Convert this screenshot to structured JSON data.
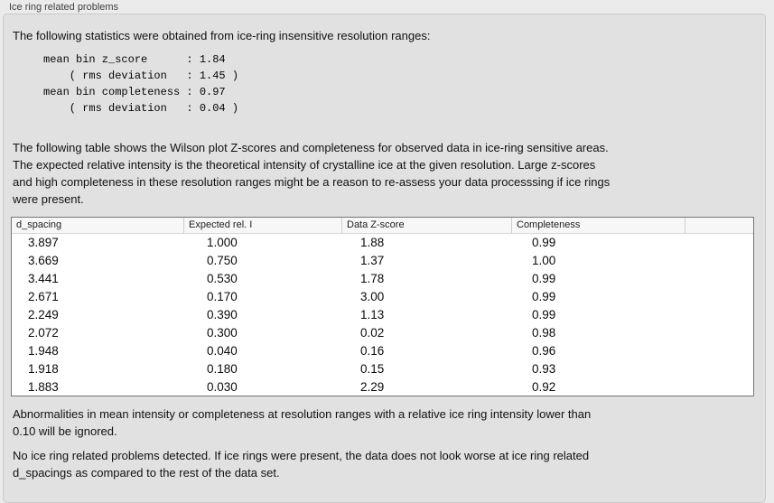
{
  "panel": {
    "title": "Ice ring related problems"
  },
  "intro": "The following statistics were obtained from ice-ring insensitive resolution ranges:",
  "stats_block": "mean bin z_score      : 1.84\n    ( rms deviation   : 1.45 )\nmean bin completeness : 0.97\n    ( rms deviation   : 0.04 )",
  "stats": {
    "mean_bin_z_score": "1.84",
    "z_score_rms_deviation": "1.45",
    "mean_bin_completeness": "0.97",
    "completeness_rms_deviation": "0.04"
  },
  "table_description": "The following table shows the Wilson plot Z-scores and completeness for observed data in ice-ring sensitive areas.\nThe expected relative intensity is the theoretical intensity of crystalline ice at the given resolution. Large z-scores\nand high completeness in these resolution ranges might be a reason to re-assess your data processsing if ice rings\nwere present.",
  "table": {
    "columns": [
      "d_spacing",
      "Expected rel. I",
      "Data Z-score",
      "Completeness"
    ],
    "rows": [
      [
        "3.897",
        "1.000",
        "1.88",
        "0.99"
      ],
      [
        "3.669",
        "0.750",
        "1.37",
        "1.00"
      ],
      [
        "3.441",
        "0.530",
        "1.78",
        "0.99"
      ],
      [
        "2.671",
        "0.170",
        "3.00",
        "0.99"
      ],
      [
        "2.249",
        "0.390",
        "1.13",
        "0.99"
      ],
      [
        "2.072",
        "0.300",
        "0.02",
        "0.98"
      ],
      [
        "1.948",
        "0.040",
        "0.16",
        "0.96"
      ],
      [
        "1.918",
        "0.180",
        "0.15",
        "0.93"
      ],
      [
        "1.883",
        "0.030",
        "2.29",
        "0.92"
      ]
    ]
  },
  "ignore_note": "Abnormalities in mean intensity or completeness at resolution ranges with a relative ice ring intensity lower than\n0.10 will be ignored.",
  "conclusion": "No ice ring related problems detected. If ice rings were present, the data does not look worse at ice ring related\nd_spacings as compared to the rest of the data set.",
  "colors": {
    "page_bg": "#ebebeb",
    "panel_bg": "#e1e1e1",
    "table_border": "#767676",
    "header_bg": "#f7f7f7"
  }
}
